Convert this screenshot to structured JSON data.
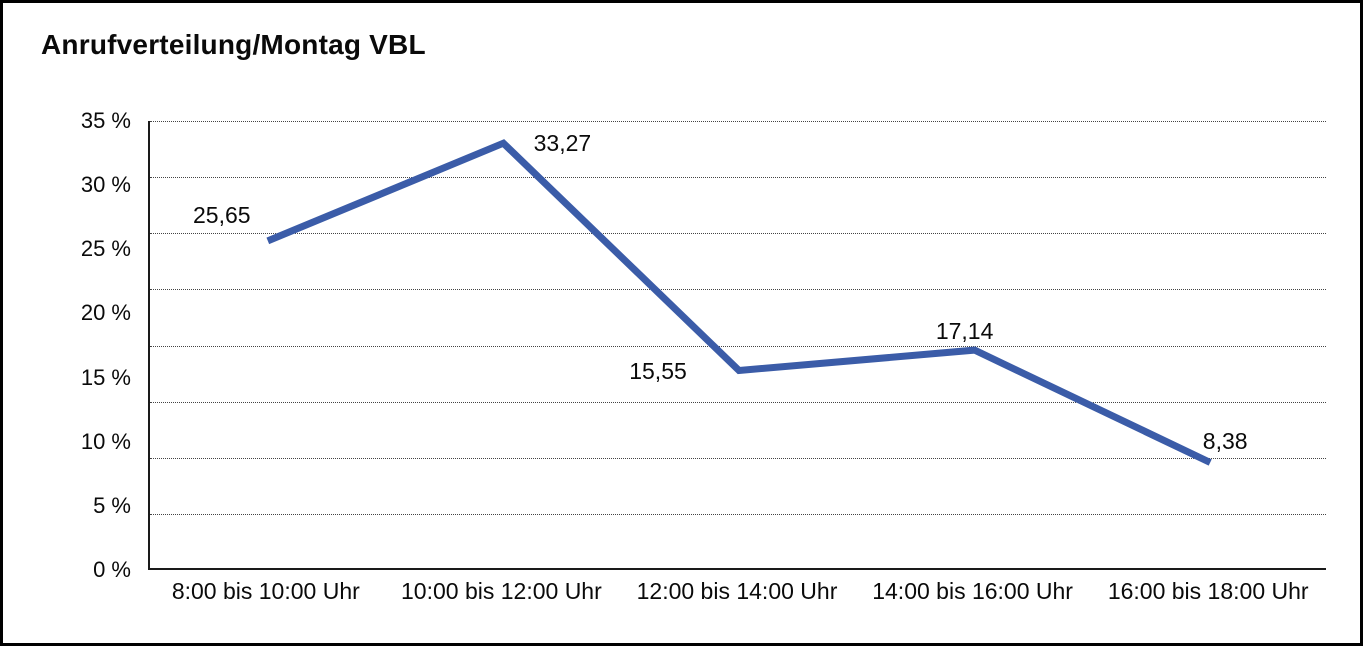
{
  "title": "Anrufverteilung/Montag VBL",
  "chart_data": {
    "type": "line",
    "title": "Anrufverteilung/Montag VBL",
    "categories": [
      "8:00 bis 10:00 Uhr",
      "10:00 bis 12:00 Uhr",
      "12:00 bis 14:00 Uhr",
      "14:00 bis 16:00 Uhr",
      "16:00 bis 18:00 Uhr"
    ],
    "values": [
      25.65,
      33.27,
      15.55,
      17.14,
      8.38
    ],
    "point_labels": [
      "25,65",
      "33,27",
      "15,55",
      "17,14",
      "8,38"
    ],
    "unit": "%",
    "xlabel": "",
    "ylabel": "",
    "ylim": [
      0,
      35
    ],
    "y_tick_step": 5,
    "y_tick_labels": [
      "35 %",
      "30 %",
      "25 %",
      "20 %",
      "15 %",
      "10 %",
      "5 %",
      "0 %"
    ],
    "legend": "none",
    "grid": "horizontal-dotted",
    "line_color": "#3B5CA8",
    "background_color": "#FFFFFF",
    "border_color": "#000000"
  }
}
